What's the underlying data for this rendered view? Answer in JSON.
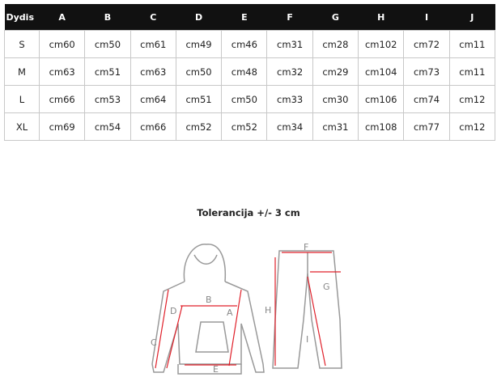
{
  "table": {
    "headers": [
      "Dydis",
      "A",
      "B",
      "C",
      "D",
      "E",
      "F",
      "G",
      "H",
      "I",
      "J"
    ],
    "rows": [
      [
        "S",
        "cm60",
        "cm50",
        "cm61",
        "cm49",
        "cm46",
        "cm31",
        "cm28",
        "cm102",
        "cm72",
        "cm11"
      ],
      [
        "M",
        "cm63",
        "cm51",
        "cm63",
        "cm50",
        "cm48",
        "cm32",
        "cm29",
        "cm104",
        "cm73",
        "cm11"
      ],
      [
        "L",
        "cm66",
        "cm53",
        "cm64",
        "cm51",
        "cm50",
        "cm33",
        "cm30",
        "cm106",
        "cm74",
        "cm12"
      ],
      [
        "XL",
        "cm69",
        "cm54",
        "cm66",
        "cm52",
        "cm52",
        "cm34",
        "cm31",
        "cm108",
        "cm77",
        "cm12"
      ]
    ]
  },
  "tolerance": "Tolerancija +/- 3 cm",
  "diagram": {
    "labels": [
      "A",
      "B",
      "C",
      "D",
      "E",
      "F",
      "G",
      "H",
      "I"
    ],
    "line_color": "#999999",
    "arrow_color": "#e0202a"
  }
}
